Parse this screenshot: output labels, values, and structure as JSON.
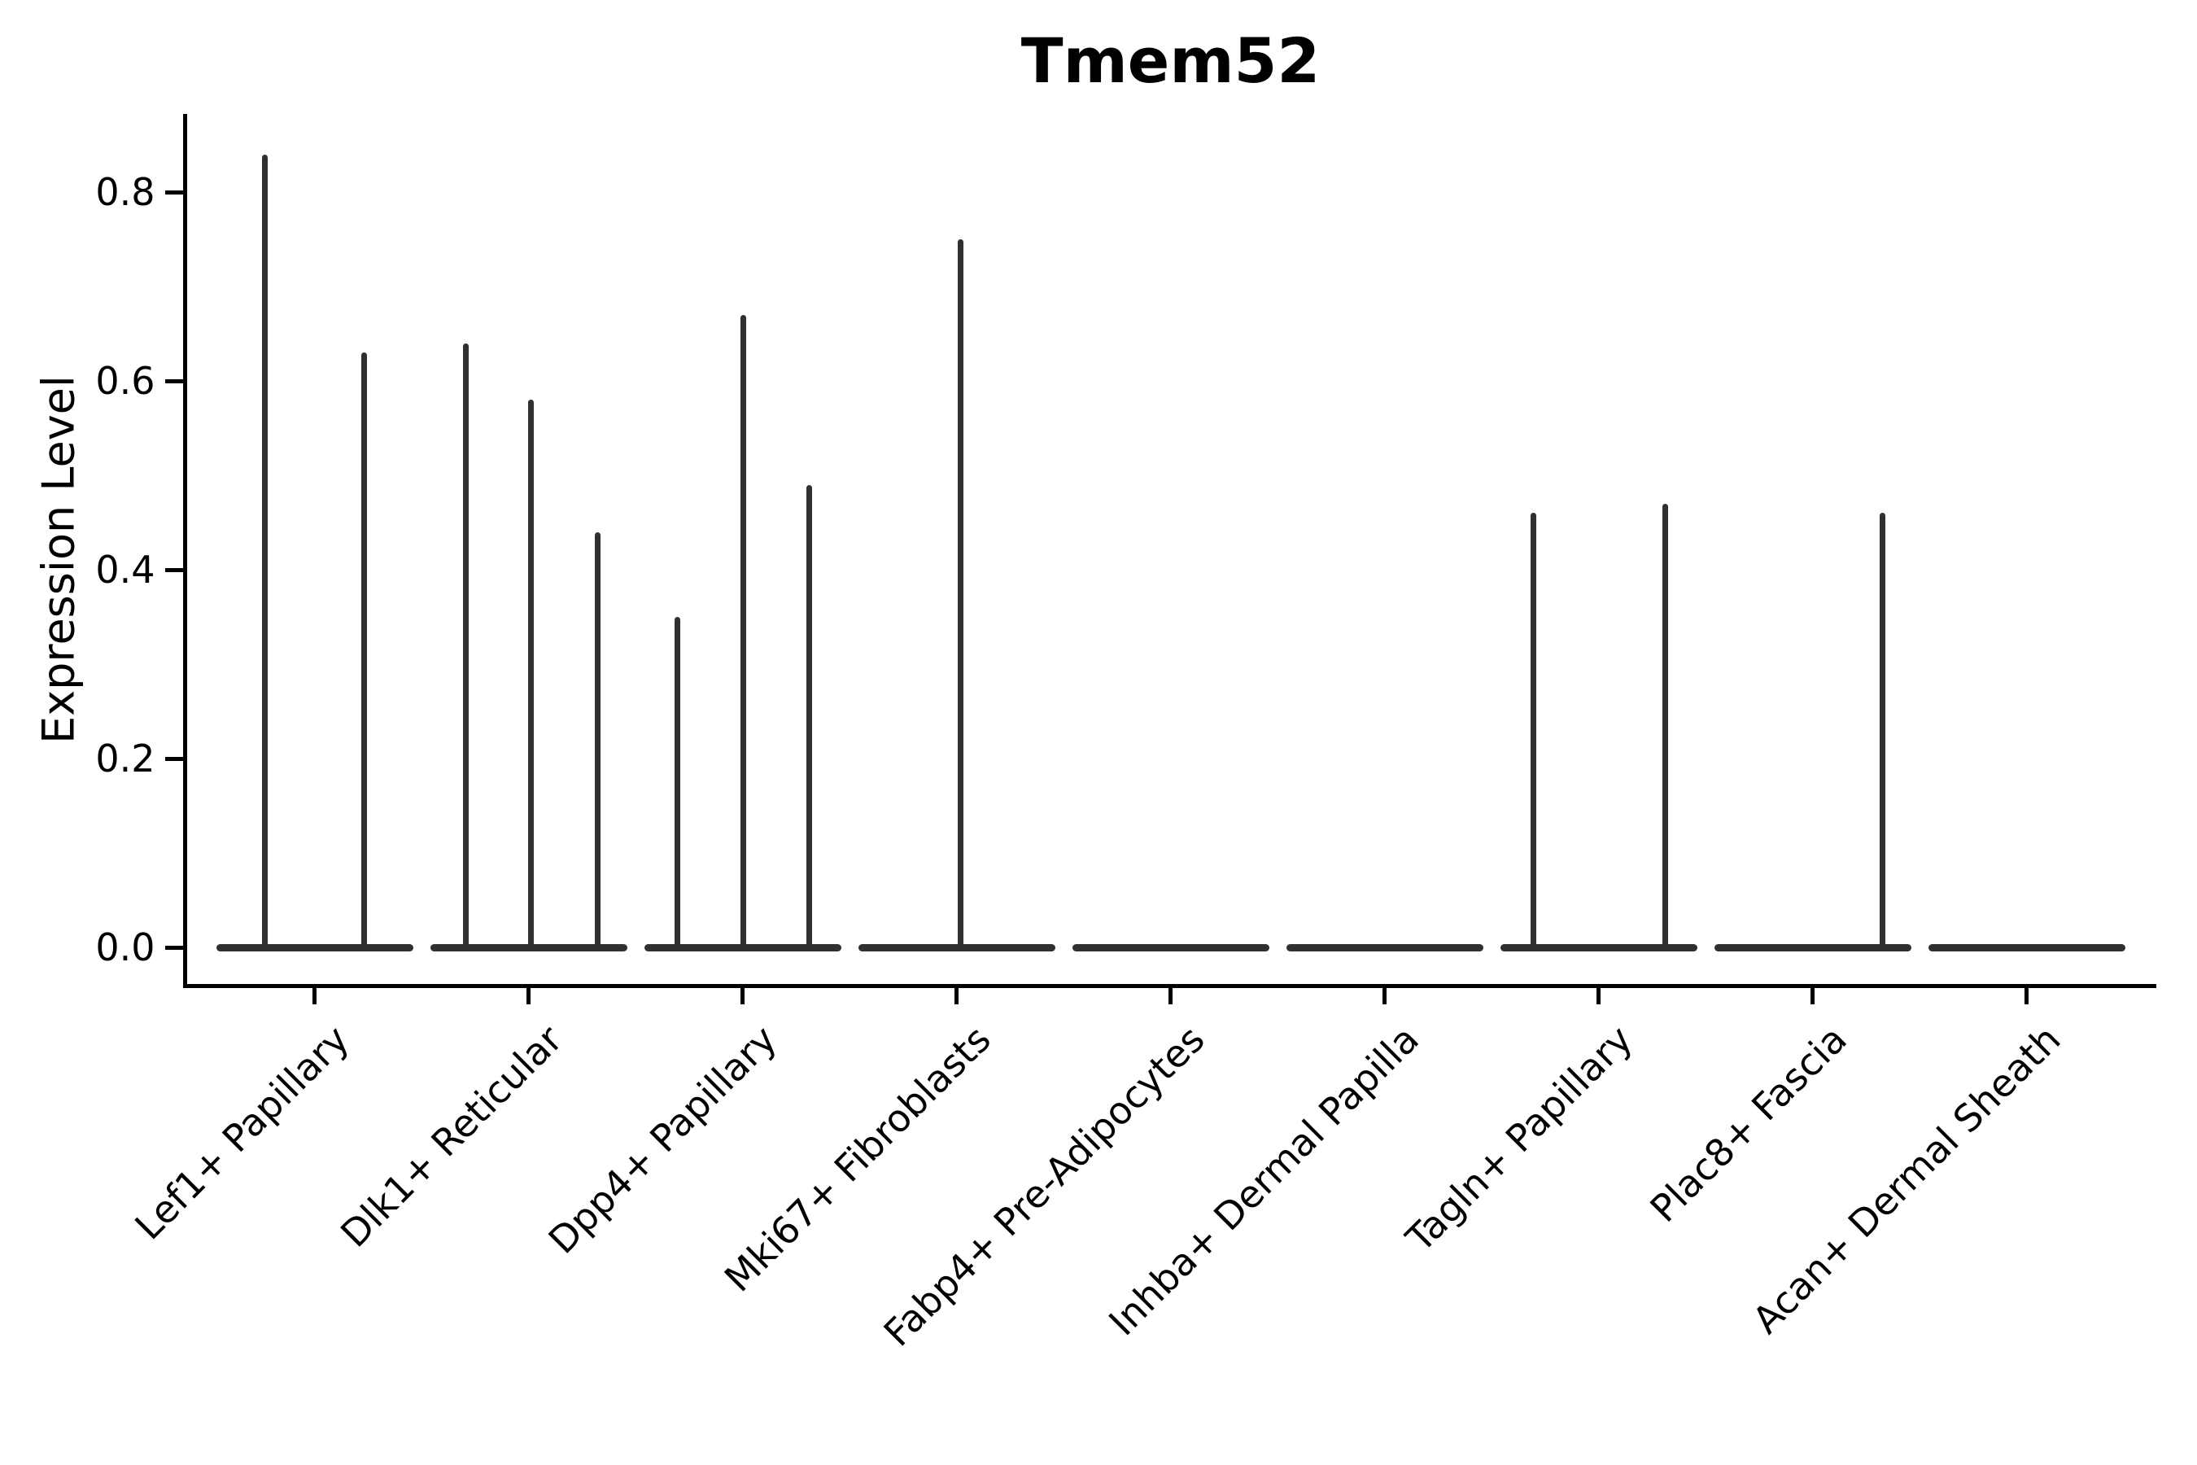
{
  "chart_data": {
    "type": "violin",
    "title": "Tmem52",
    "ylabel": "Expression Level",
    "xlabel": "",
    "grid": false,
    "legend_position": "none",
    "ylim": [
      -0.04,
      0.88
    ],
    "ytick_labels": [
      "0.0",
      "0.2",
      "0.4",
      "0.6",
      "0.8"
    ],
    "ytick_values": [
      0.0,
      0.2,
      0.4,
      0.6,
      0.8
    ],
    "categories": [
      "Lef1+ Papillary",
      "Dlk1+ Reticular",
      "Dpp4+ Papillary",
      "Mki67+ Fibroblasts",
      "Fabp4+ Pre-Adipocytes",
      "Inhba+ Dermal Papilla",
      "Tagln+ Papillary",
      "Plac8+ Fascia",
      "Acan+ Dermal Sheath"
    ],
    "groups": [
      {
        "category": "Lef1+ Papillary",
        "violins": [
          {
            "dx": -61,
            "max": 0.84
          },
          {
            "dx": 61,
            "max": 0.63
          }
        ]
      },
      {
        "category": "Dlk1+ Reticular",
        "violins": [
          {
            "dx": -77,
            "max": 0.64
          },
          {
            "dx": 3,
            "max": 0.58
          },
          {
            "dx": 85,
            "max": 0.44
          }
        ]
      },
      {
        "category": "Dpp4+ Papillary",
        "violins": [
          {
            "dx": -80,
            "max": 0.35
          },
          {
            "dx": 1,
            "max": 0.67
          },
          {
            "dx": 82,
            "max": 0.49
          }
        ]
      },
      {
        "category": "Mki67+ Fibroblasts",
        "violins": [
          {
            "dx": 5,
            "max": 0.75
          }
        ]
      },
      {
        "category": "Fabp4+ Pre-Adipocytes",
        "violins": []
      },
      {
        "category": "Inhba+ Dermal Papilla",
        "violins": []
      },
      {
        "category": "Tagln+ Papillary",
        "violins": [
          {
            "dx": -80,
            "max": 0.46
          },
          {
            "dx": 82,
            "max": 0.47
          }
        ]
      },
      {
        "category": "Plac8+ Fascia",
        "violins": [
          {
            "dx": 86,
            "max": 0.46
          }
        ]
      },
      {
        "category": "Acan+ Dermal Sheath",
        "violins": []
      }
    ],
    "violin_min": 0.0,
    "base_extent": {
      "dx1": -120,
      "dx2": 122
    },
    "colors": {
      "violin": "#303030",
      "axis": "#000000",
      "text": "#000000",
      "background": "#ffffff"
    }
  }
}
